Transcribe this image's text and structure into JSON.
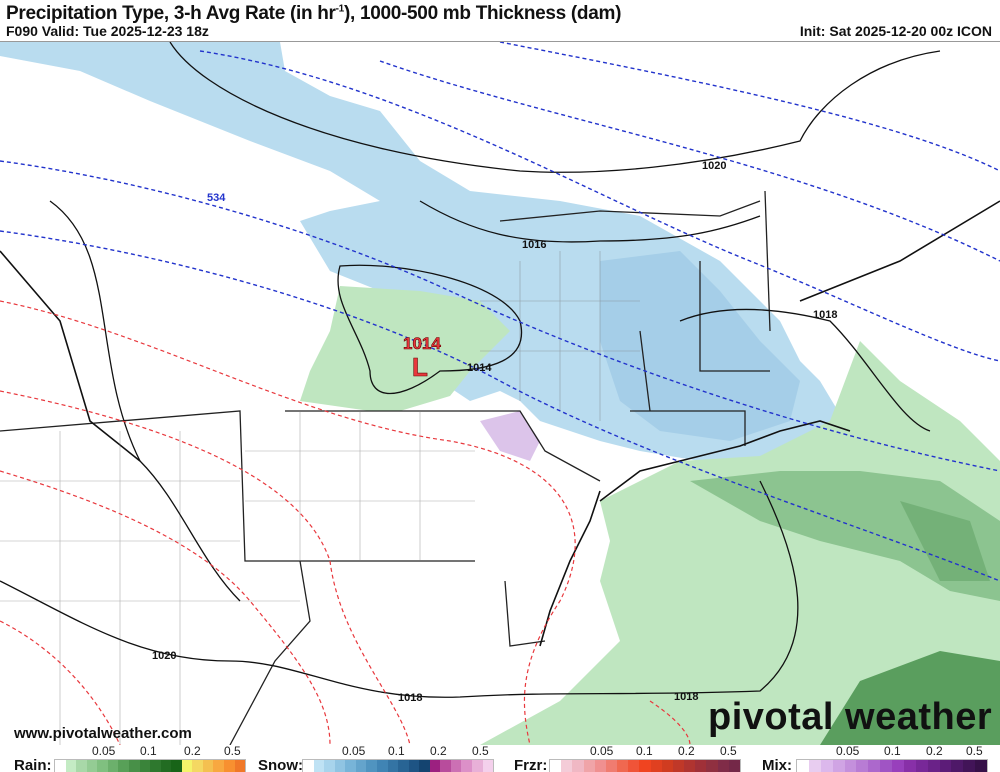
{
  "header": {
    "title": "Precipitation Type, 3-h Avg Rate (in hr",
    "title_sup": "-1",
    "title_end": "), 1000-500 mb Thickness (dam)",
    "valid": "F090 Valid: Tue 2025-12-23 18z",
    "init": "Init: Sat 2025-12-20 00z ICON"
  },
  "map": {
    "low_center": {
      "pressure": "1014",
      "symbol": "L",
      "color": "#e8383d"
    },
    "isobar_labels": [
      "1020",
      "1016",
      "1014",
      "1018",
      "1020",
      "1018",
      "1018"
    ],
    "thickness_labels": [
      "534"
    ],
    "colors": {
      "snow": "#b9dcef",
      "rain": "#bfe6c0",
      "rain_heavy": "#6aaa6e",
      "mix": "#dcc4ea",
      "thickness_cold": "#2233cc",
      "thickness_warm": "#e8383d"
    }
  },
  "footer": {
    "website": "www.pivotalweather.com",
    "logo": "pivotal weather"
  },
  "legends": [
    {
      "label": "Rain:",
      "ticks": [
        "0.05",
        "0.1",
        "0.2",
        "0.5"
      ],
      "colors": [
        "#ffffff",
        "#c4ebc4",
        "#a8d8a8",
        "#94cc94",
        "#80c080",
        "#6cb06c",
        "#58a058",
        "#489048",
        "#3a843a",
        "#2e782e",
        "#226c22",
        "#186418",
        "#f4f46a",
        "#f4d862",
        "#f4c050",
        "#f8a840",
        "#f89030",
        "#f07828"
      ]
    },
    {
      "label": "Snow:",
      "ticks": [
        "0.05",
        "0.1",
        "0.2",
        "0.5"
      ],
      "colors": [
        "#ffffff",
        "#bfe2f4",
        "#a8d4ec",
        "#90c4e2",
        "#78b4d8",
        "#64a4cc",
        "#5094c0",
        "#4084b4",
        "#3474a4",
        "#286494",
        "#1e5484",
        "#144470",
        "#9c2080",
        "#b84c9c",
        "#cc70b4",
        "#dc90c8",
        "#e8b0d8",
        "#f4d0ec"
      ]
    },
    {
      "label": "Frzr:",
      "ticks": [
        "0.05",
        "0.1",
        "0.2",
        "0.5"
      ],
      "colors": [
        "#ffffff",
        "#f4ccd8",
        "#f0b8c4",
        "#f0a4a8",
        "#f09090",
        "#f07c70",
        "#f06850",
        "#f05438",
        "#f04420",
        "#e04020",
        "#d03c20",
        "#c03828",
        "#b03430",
        "#a03038",
        "#903040",
        "#802c48",
        "#742848"
      ]
    },
    {
      "label": "Mix:",
      "ticks": [
        "0.05",
        "0.1",
        "0.2",
        "0.5"
      ],
      "colors": [
        "#ffffff",
        "#e8cdf0",
        "#dcb8ec",
        "#d0a4e4",
        "#c490dc",
        "#b87cd4",
        "#ac68cc",
        "#a054c4",
        "#9840bc",
        "#8830a8",
        "#782898",
        "#6a2288",
        "#5c1c78",
        "#4e1868",
        "#421458",
        "#361048"
      ]
    }
  ]
}
